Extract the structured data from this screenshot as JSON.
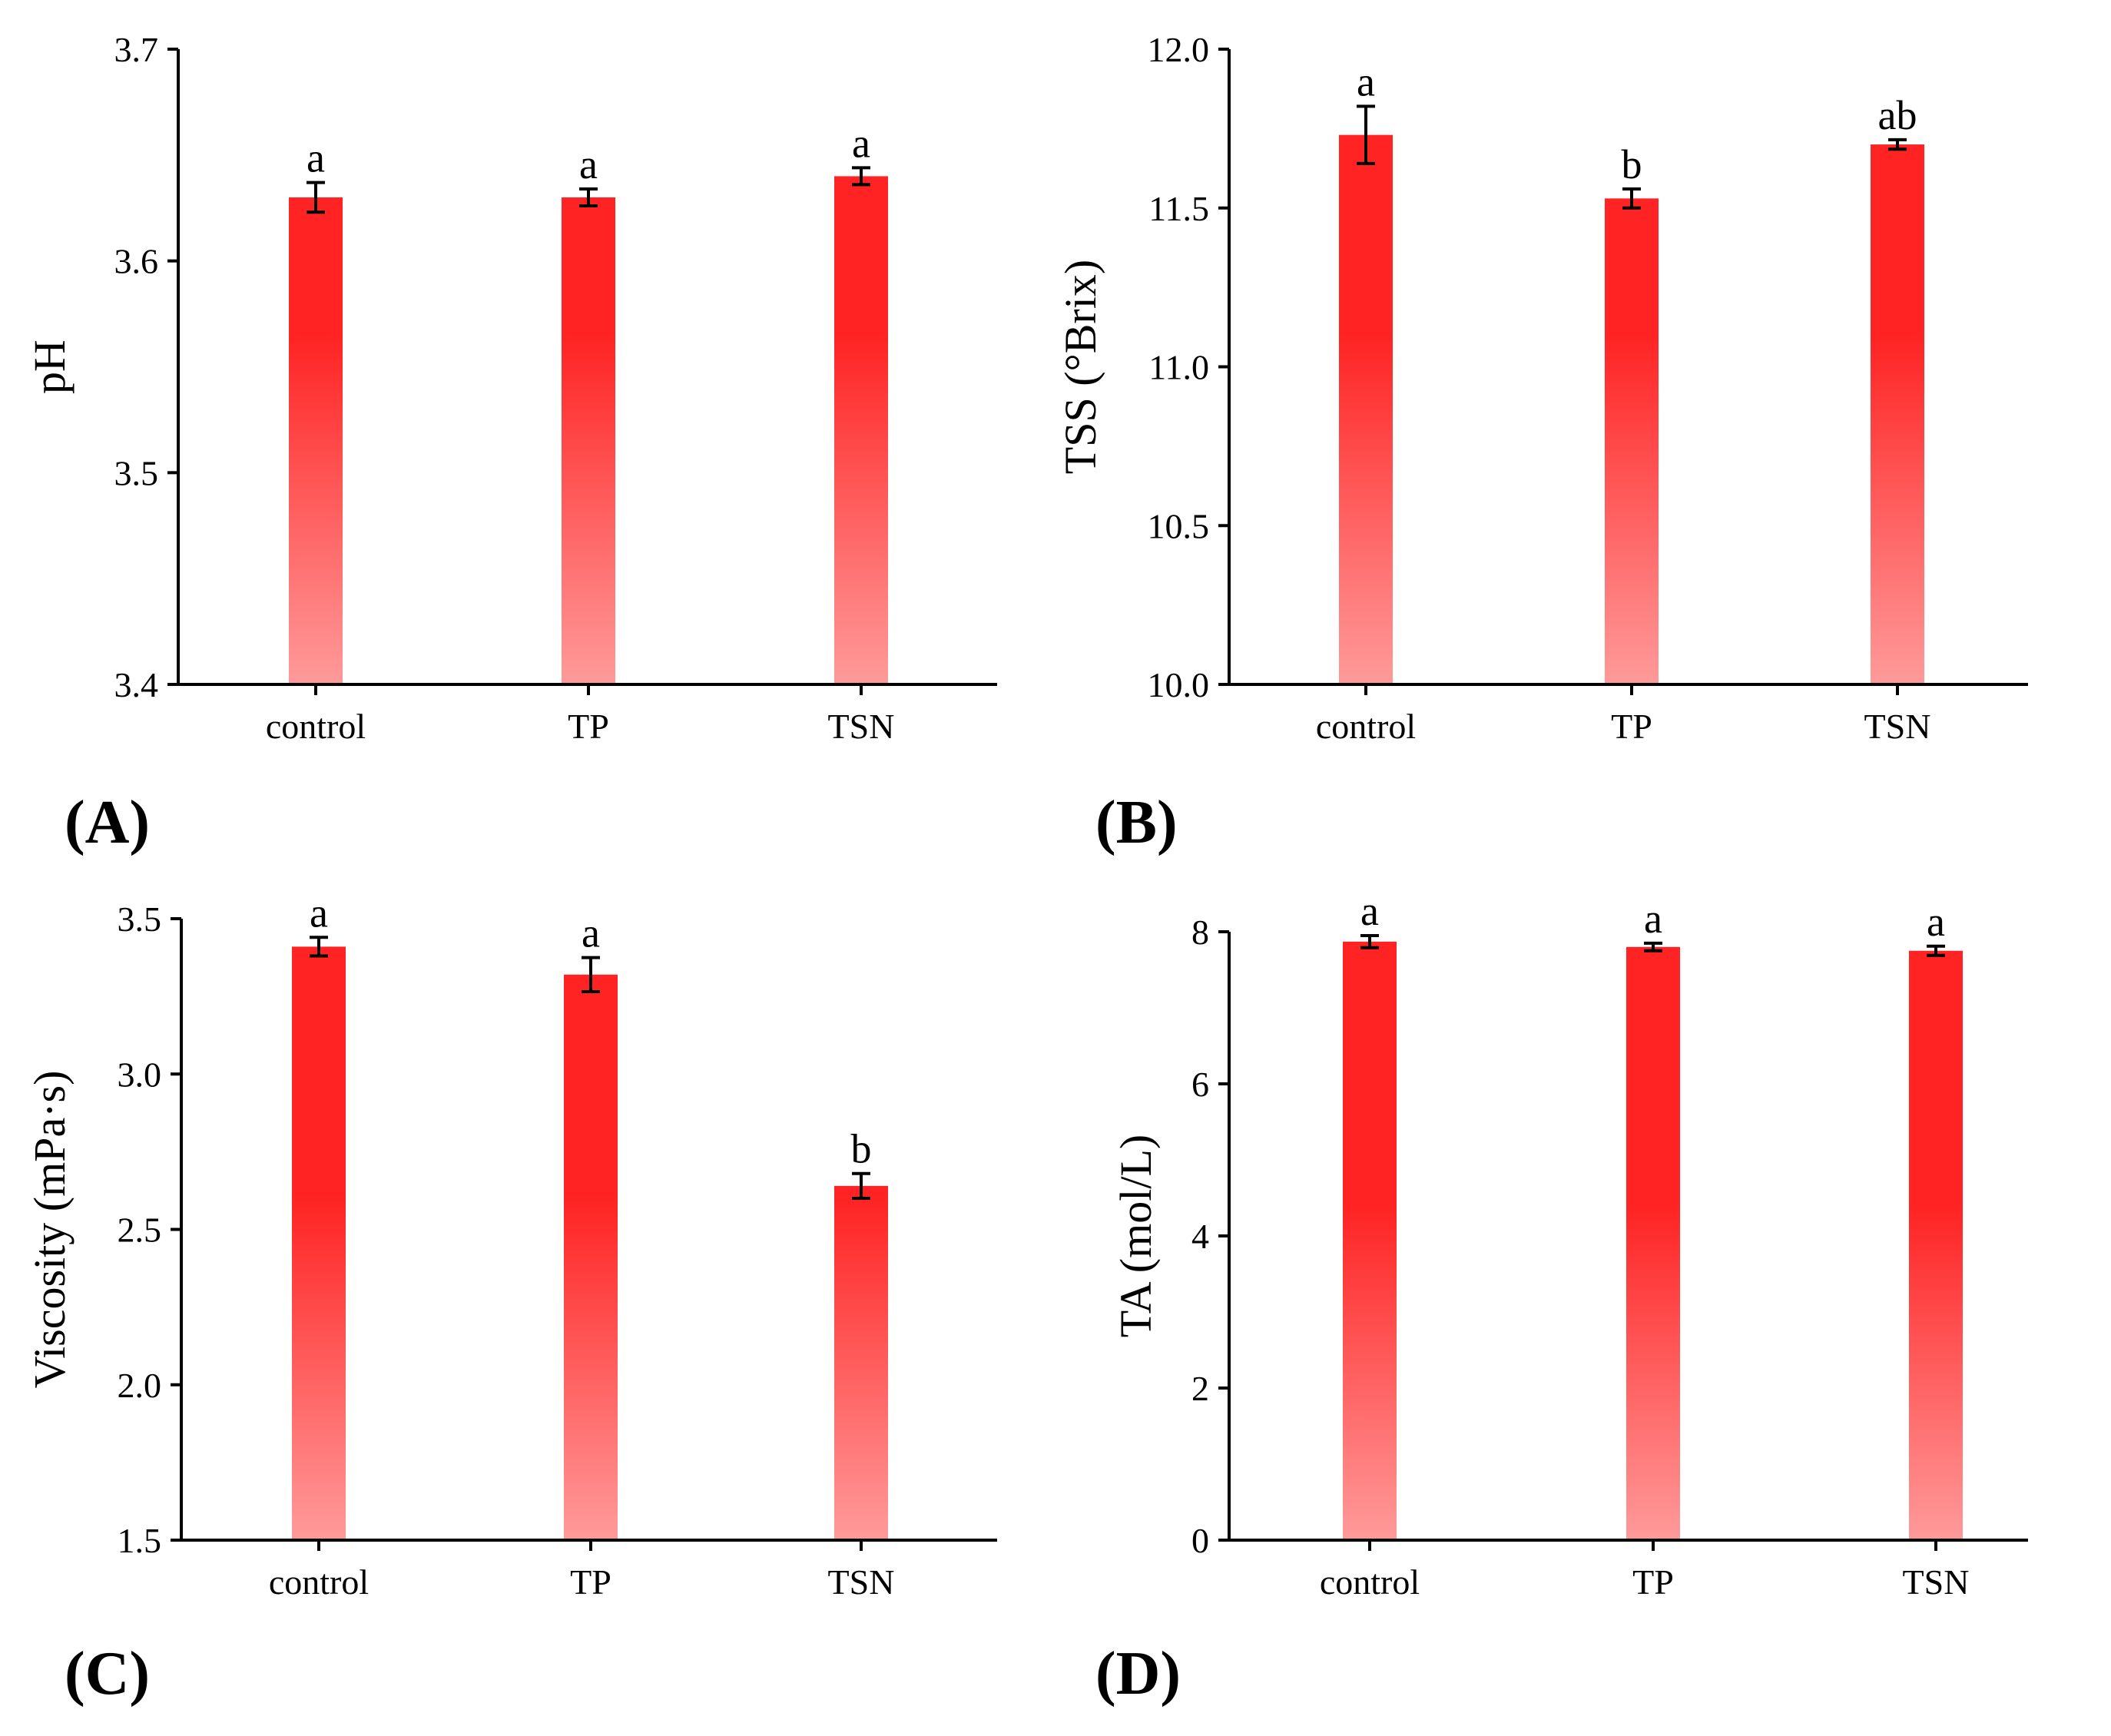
{
  "colors": {
    "bar_top": "#ff2323",
    "bar_bottom": "#ff9a9a",
    "axis": "#000000"
  },
  "chart_data": [
    {
      "type": "bar",
      "panel": "(A)",
      "title": "",
      "xlabel": "",
      "ylabel": "pH",
      "categories": [
        "control",
        "TP",
        "TSN"
      ],
      "values": [
        3.63,
        3.63,
        3.64
      ],
      "errors": [
        0.007,
        0.004,
        0.004
      ],
      "sig_letters": [
        "a",
        "a",
        "a"
      ],
      "ylim": [
        3.4,
        3.7
      ],
      "yticks": [
        3.4,
        3.5,
        3.6,
        3.7
      ],
      "tick_labels": [
        "3.4",
        "3.5",
        "3.6",
        "3.7"
      ],
      "grid": false,
      "legend": "none"
    },
    {
      "type": "bar",
      "panel": "(B)",
      "title": "",
      "xlabel": "",
      "ylabel": "TSS (°Brix)",
      "categories": [
        "control",
        "TP",
        "TSN"
      ],
      "values": [
        11.73,
        11.53,
        11.7
      ],
      "errors": [
        0.09,
        0.03,
        0.015
      ],
      "sig_letters": [
        "a",
        "b",
        "ab"
      ],
      "ylim": [
        10.0,
        12.0
      ],
      "yticks": [
        10.0,
        10.5,
        11.0,
        11.5,
        12.0
      ],
      "tick_labels": [
        "10.0",
        "10.5",
        "11.0",
        "11.5",
        "12.0"
      ],
      "grid": false,
      "legend": "none"
    },
    {
      "type": "bar",
      "panel": "(C)",
      "title": "",
      "xlabel": "",
      "ylabel": "Viscosity (mPa·s)",
      "categories": [
        "control",
        "TP",
        "TSN"
      ],
      "values": [
        3.41,
        3.32,
        2.64
      ],
      "errors": [
        0.03,
        0.055,
        0.04
      ],
      "sig_letters": [
        "a",
        "a",
        "b"
      ],
      "ylim": [
        1.5,
        3.5
      ],
      "yticks": [
        1.5,
        2.0,
        2.5,
        3.0,
        3.5
      ],
      "tick_labels": [
        "1.5",
        "2.0",
        "2.5",
        "3.0",
        "3.5"
      ],
      "grid": false,
      "legend": "none"
    },
    {
      "type": "bar",
      "panel": "(D)",
      "title": "",
      "xlabel": "",
      "ylabel": "TA (mol/L)",
      "categories": [
        "control",
        "TP",
        "TSN"
      ],
      "values": [
        7.87,
        7.8,
        7.75
      ],
      "errors": [
        0.08,
        0.05,
        0.06
      ],
      "sig_letters": [
        "a",
        "a",
        "a"
      ],
      "ylim": [
        0,
        8
      ],
      "yticks": [
        0,
        2,
        4,
        6,
        8
      ],
      "tick_labels": [
        "0",
        "2",
        "4",
        "6",
        "8"
      ],
      "grid": false,
      "legend": "none"
    }
  ]
}
